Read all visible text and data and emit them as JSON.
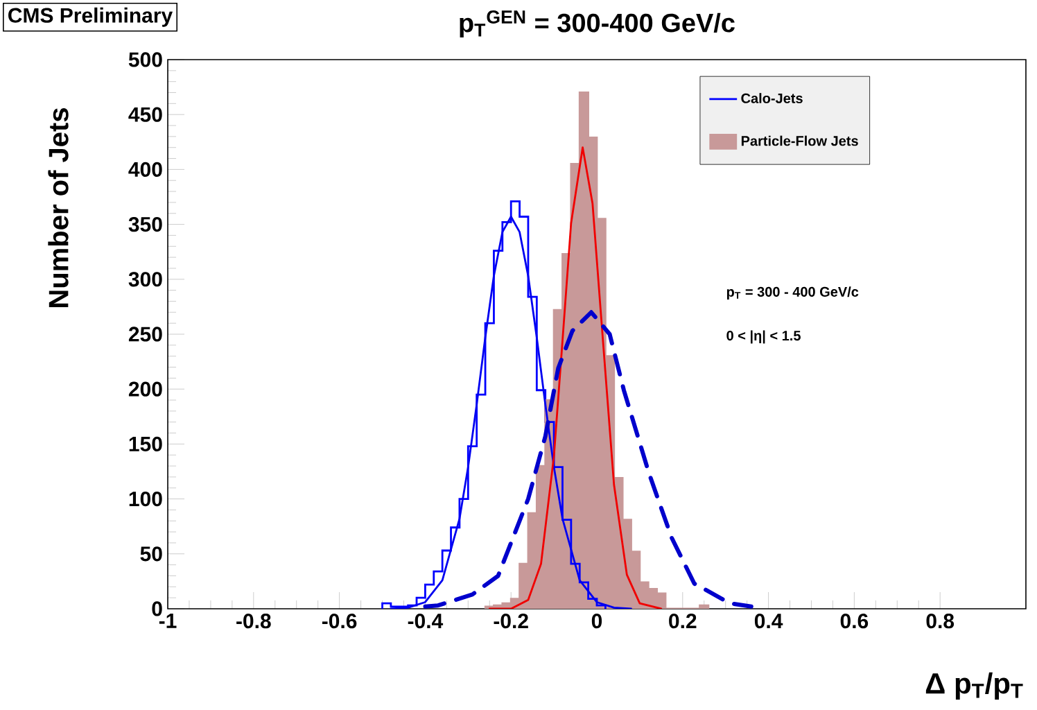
{
  "chart_data": {
    "type": "histogram",
    "title": "p$_{T}$$^{GEN}$ = 300-400 GeV/c",
    "xlabel": "Δ p$_{T}$/p$_{T}$",
    "ylabel": "Number of Jets",
    "xlim": [
      -1,
      1
    ],
    "ylim": [
      0,
      500
    ],
    "xticks": [
      -1,
      -0.8,
      -0.6,
      -0.4,
      -0.2,
      0,
      0.2,
      0.4,
      0.6,
      0.8
    ],
    "yticks": [
      0,
      50,
      100,
      150,
      200,
      250,
      300,
      350,
      400,
      450,
      500
    ],
    "legend": "top right",
    "grid": false,
    "annotations": [
      "CMS Preliminary",
      "p$_{T}$ = 300 - 400 GeV/c",
      "0 < |η| < 1.5"
    ],
    "series": [
      {
        "name": "Calo-Jets",
        "line_style": "solid",
        "color": "#0000ff",
        "bins": [
          -0.5,
          -0.48,
          -0.46,
          -0.44,
          -0.42,
          -0.4,
          -0.38,
          -0.36,
          -0.34,
          -0.32,
          -0.3,
          -0.28,
          -0.26,
          -0.24,
          -0.22,
          -0.2,
          -0.18,
          -0.16,
          -0.14,
          -0.12,
          -0.1,
          -0.08,
          -0.06,
          -0.04,
          -0.02,
          0,
          0.02
        ],
        "values": [
          5,
          2,
          2,
          3,
          10,
          22,
          34,
          53,
          74,
          100,
          148,
          195,
          260,
          326,
          352,
          371,
          357,
          284,
          199,
          170,
          129,
          81,
          41,
          24,
          9,
          3
        ]
      },
      {
        "name": "Particle-Flow Jets",
        "color": "#c89999",
        "bins": [
          -0.26,
          -0.24,
          -0.22,
          -0.2,
          -0.18,
          -0.16,
          -0.14,
          -0.12,
          -0.1,
          -0.08,
          -0.06,
          -0.04,
          -0.02,
          0,
          0.02,
          0.04,
          0.06,
          0.08,
          0.1,
          0.12,
          0.14,
          0.16,
          0.18,
          0.2,
          0.22,
          0.24,
          0.26
        ],
        "values": [
          2,
          3,
          5,
          9,
          41,
          87,
          130,
          190,
          272,
          323,
          405,
          470,
          429,
          355,
          230,
          119,
          81,
          52,
          24,
          18,
          14,
          0,
          0,
          0,
          0,
          3
        ]
      },
      {
        "type": "line",
        "color": "#0000f0",
        "x": [
          -0.48,
          -0.44,
          -0.4,
          -0.36,
          -0.32,
          -0.3,
          -0.28,
          -0.26,
          -0.24,
          -0.22,
          -0.2,
          -0.18,
          -0.16,
          -0.14,
          -0.12,
          -0.1,
          -0.08,
          -0.04,
          0,
          0.04,
          0.08
        ],
        "values": [
          0,
          1,
          6,
          26,
          82,
          129,
          186,
          247,
          303,
          343,
          357,
          343,
          303,
          247,
          186,
          129,
          82,
          26,
          6,
          1,
          0
        ]
      },
      {
        "type": "line",
        "color": "#f00000",
        "x": [
          -0.25,
          -0.2,
          -0.16,
          -0.13,
          -0.1,
          -0.08,
          -0.06,
          -0.033,
          -0.01,
          0.01,
          0.04,
          0.07,
          0.1,
          0.15
        ],
        "values": [
          0,
          0,
          8,
          41,
          139,
          244,
          351,
          420,
          369,
          266,
          113,
          31,
          5,
          0
        ]
      },
      {
        "type": "line",
        "line_style": "dashed",
        "color": "#0000cc",
        "x": [
          -0.4,
          -0.37,
          -0.29,
          -0.23,
          -0.16,
          -0.12,
          -0.09,
          -0.057,
          -0.013,
          0.03,
          0.063,
          0.121,
          0.174,
          0.227,
          0.31,
          0.36
        ],
        "values": [
          2,
          3,
          13,
          30,
          100,
          157,
          219,
          253,
          270,
          250,
          199,
          124,
          65,
          23,
          5,
          2
        ]
      }
    ]
  }
}
